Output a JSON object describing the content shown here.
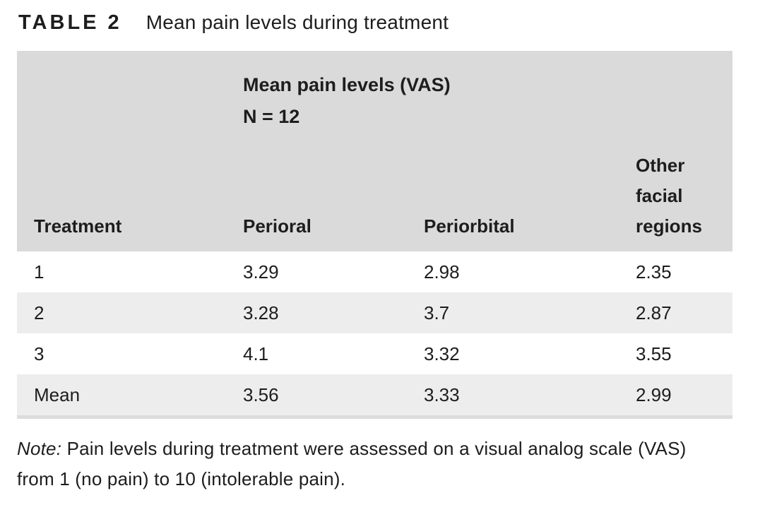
{
  "title": {
    "tag": "TABLE 2",
    "text": "Mean pain levels during treatment"
  },
  "table": {
    "span_header": {
      "line1": "Mean pain levels (VAS)",
      "line2": "N = 12"
    },
    "columns": [
      "Treatment",
      "Perioral",
      "Periorbital",
      "Other facial regions"
    ],
    "rows": [
      [
        "1",
        "3.29",
        "2.98",
        "2.35"
      ],
      [
        "2",
        "3.28",
        "3.7",
        "2.87"
      ],
      [
        "3",
        "4.1",
        "3.32",
        "3.55"
      ],
      [
        "Mean",
        "3.56",
        "3.33",
        "2.99"
      ]
    ]
  },
  "note": {
    "label": "Note:",
    "text": "Pain levels during treatment were assessed on a visual analog scale (VAS) from 1 (no pain) to 10 (intolerable pain)."
  },
  "chart_data": {
    "type": "table",
    "title": "TABLE 2  Mean pain levels during treatment",
    "group_header": "Mean pain levels (VAS) N = 12",
    "columns": [
      "Treatment",
      "Perioral",
      "Periorbital",
      "Other facial regions"
    ],
    "rows": [
      {
        "Treatment": "1",
        "Perioral": 3.29,
        "Periorbital": 2.98,
        "Other facial regions": 2.35
      },
      {
        "Treatment": "2",
        "Perioral": 3.28,
        "Periorbital": 3.7,
        "Other facial regions": 2.87
      },
      {
        "Treatment": "3",
        "Perioral": 4.1,
        "Periorbital": 3.32,
        "Other facial regions": 3.55
      },
      {
        "Treatment": "Mean",
        "Perioral": 3.56,
        "Periorbital": 3.33,
        "Other facial regions": 2.99
      }
    ],
    "note": "Pain levels during treatment were assessed on a visual analog scale (VAS) from 1 (no pain) to 10 (intolerable pain)."
  },
  "colors": {
    "header_bg": "#dadada",
    "row_alt_bg": "#ededed",
    "bottom_rule": "#dcdcdc",
    "text": "#1d1d1d"
  }
}
